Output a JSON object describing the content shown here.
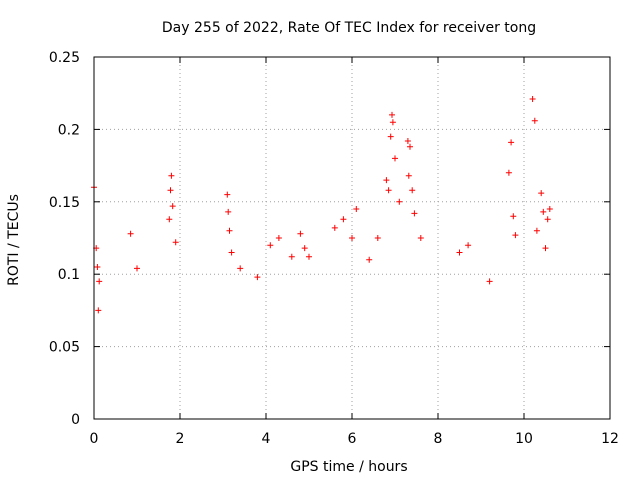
{
  "chart_data": {
    "type": "scatter",
    "title": "Day 255 of 2022, Rate Of TEC Index for receiver tong",
    "xlabel": "GPS time / hours",
    "ylabel": "ROTI / TECUs",
    "xlim": [
      0,
      12
    ],
    "ylim": [
      0,
      0.25
    ],
    "x_ticks": [
      "0",
      "2",
      "4",
      "6",
      "8",
      "10",
      "12"
    ],
    "y_ticks": [
      "0",
      "0.05",
      "0.1",
      "0.15",
      "0.2",
      "0.25"
    ],
    "grid": true,
    "marker": "+",
    "color": "#ff0000",
    "points": [
      [
        0.0,
        0.16
      ],
      [
        0.05,
        0.118
      ],
      [
        0.08,
        0.105
      ],
      [
        0.12,
        0.095
      ],
      [
        0.1,
        0.075
      ],
      [
        0.85,
        0.128
      ],
      [
        1.0,
        0.104
      ],
      [
        1.8,
        0.168
      ],
      [
        1.78,
        0.158
      ],
      [
        1.83,
        0.147
      ],
      [
        1.75,
        0.138
      ],
      [
        1.9,
        0.122
      ],
      [
        3.1,
        0.155
      ],
      [
        3.12,
        0.143
      ],
      [
        3.15,
        0.13
      ],
      [
        3.2,
        0.115
      ],
      [
        3.4,
        0.104
      ],
      [
        3.8,
        0.098
      ],
      [
        4.1,
        0.12
      ],
      [
        4.3,
        0.125
      ],
      [
        4.6,
        0.112
      ],
      [
        4.8,
        0.128
      ],
      [
        4.9,
        0.118
      ],
      [
        5.0,
        0.112
      ],
      [
        5.6,
        0.132
      ],
      [
        5.8,
        0.138
      ],
      [
        6.0,
        0.125
      ],
      [
        6.1,
        0.145
      ],
      [
        6.4,
        0.11
      ],
      [
        6.6,
        0.125
      ],
      [
        6.8,
        0.165
      ],
      [
        6.85,
        0.158
      ],
      [
        6.9,
        0.195
      ],
      [
        6.93,
        0.21
      ],
      [
        6.95,
        0.205
      ],
      [
        7.0,
        0.18
      ],
      [
        7.1,
        0.15
      ],
      [
        7.3,
        0.192
      ],
      [
        7.35,
        0.188
      ],
      [
        7.32,
        0.168
      ],
      [
        7.4,
        0.158
      ],
      [
        7.45,
        0.142
      ],
      [
        7.6,
        0.125
      ],
      [
        8.5,
        0.115
      ],
      [
        8.7,
        0.12
      ],
      [
        9.2,
        0.095
      ],
      [
        9.7,
        0.191
      ],
      [
        9.65,
        0.17
      ],
      [
        9.75,
        0.14
      ],
      [
        9.8,
        0.127
      ],
      [
        10.2,
        0.221
      ],
      [
        10.25,
        0.206
      ],
      [
        10.4,
        0.156
      ],
      [
        10.45,
        0.143
      ],
      [
        10.3,
        0.13
      ],
      [
        10.5,
        0.118
      ],
      [
        10.6,
        0.145
      ],
      [
        10.55,
        0.138
      ]
    ]
  }
}
